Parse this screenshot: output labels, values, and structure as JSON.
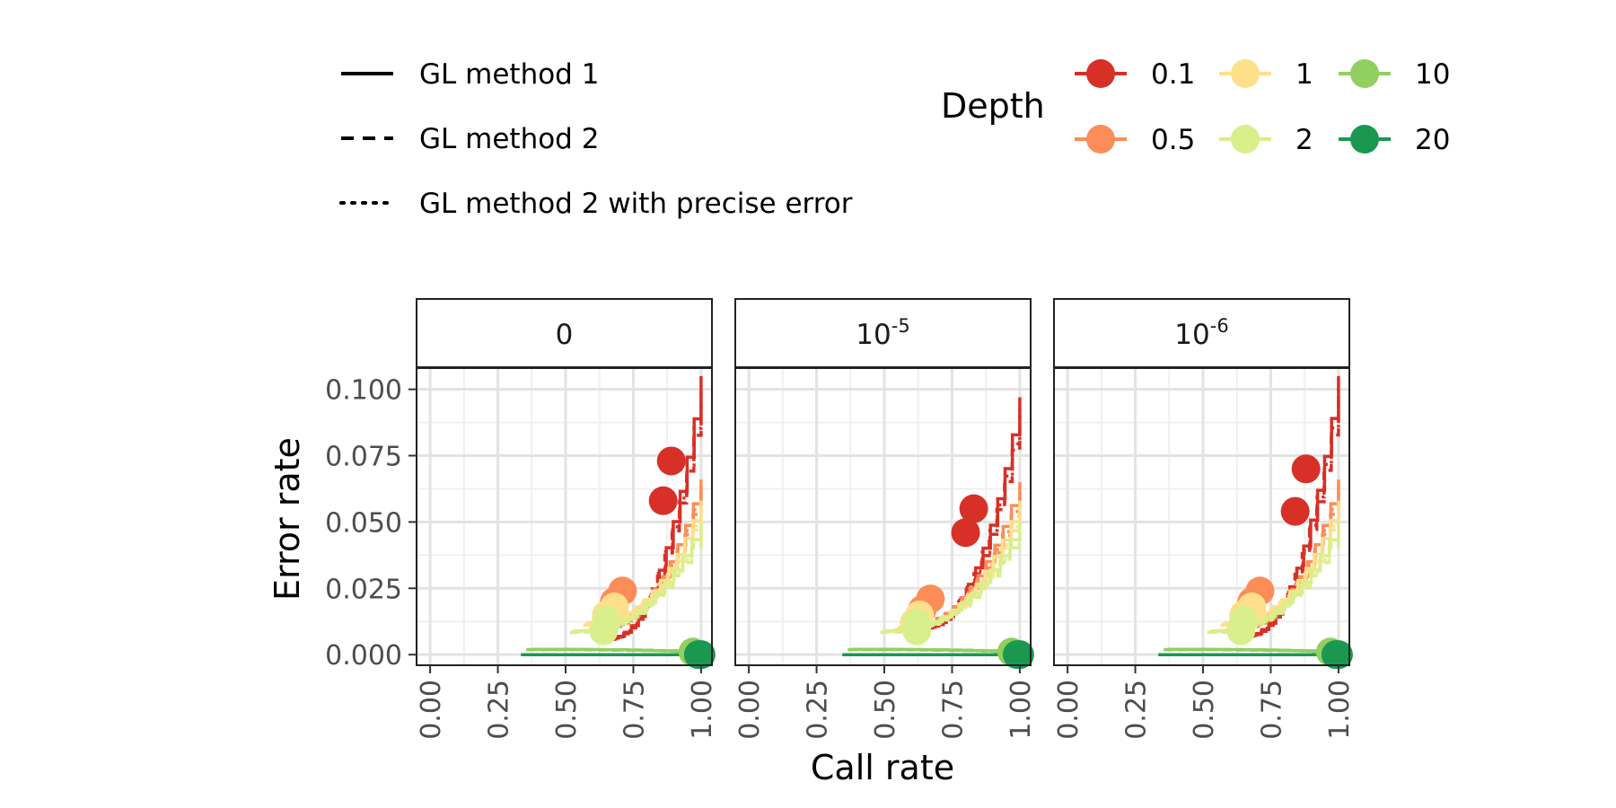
{
  "legend": {
    "method_entries": [
      {
        "label": "GL method 1",
        "dash": "solid"
      },
      {
        "label": "GL method 2",
        "dash": "dashed"
      },
      {
        "label": "GL method 2 with precise error",
        "dash": "dotted"
      }
    ],
    "depth_title": "Depth",
    "depth_entries": [
      {
        "label": "0.1",
        "color": "#d73027"
      },
      {
        "label": "0.5",
        "color": "#fc8d59"
      },
      {
        "label": "1",
        "color": "#fee08b"
      },
      {
        "label": "2",
        "color": "#d9ef8b"
      },
      {
        "label": "10",
        "color": "#91cf60"
      },
      {
        "label": "20",
        "color": "#1a9850"
      }
    ]
  },
  "chart_data": {
    "type": "line",
    "xlabel": "Call rate",
    "ylabel": "Error rate",
    "xlim": [
      -0.05,
      1.04
    ],
    "ylim": [
      -0.004,
      0.108
    ],
    "x_ticks": [
      "0.00",
      "0.25",
      "0.50",
      "0.75",
      "1.00"
    ],
    "y_ticks": [
      "0.000",
      "0.025",
      "0.050",
      "0.075",
      "0.100"
    ],
    "grid": true,
    "legend_position": "top",
    "panels": [
      {
        "strip_base": "0",
        "strip_exp": "",
        "series": [
          {
            "depth": "0.1",
            "color": "#d73027",
            "curve_start": [
              0.64,
              0.006
            ],
            "curve_end": [
              1.0,
              0.105
            ],
            "points": [
              [
                0.89,
                0.073
              ],
              [
                0.86,
                0.058
              ]
            ]
          },
          {
            "depth": "0.5",
            "color": "#fc8d59",
            "curve_start": [
              0.6,
              0.01
            ],
            "curve_end": [
              1.0,
              0.066
            ],
            "points": [
              [
                0.71,
                0.024
              ],
              [
                0.68,
                0.02
              ]
            ]
          },
          {
            "depth": "1",
            "color": "#fee08b",
            "curve_start": [
              0.58,
              0.012
            ],
            "curve_end": [
              1.0,
              0.058
            ],
            "points": [
              [
                0.68,
                0.018
              ],
              [
                0.65,
                0.015
              ]
            ]
          },
          {
            "depth": "2",
            "color": "#d9ef8b",
            "curve_start": [
              0.53,
              0.009
            ],
            "curve_end": [
              1.0,
              0.05
            ],
            "points": [
              [
                0.65,
                0.013
              ],
              [
                0.64,
                0.009
              ]
            ]
          },
          {
            "depth": "10",
            "color": "#91cf60",
            "curve_start": [
              0.37,
              0.002
            ],
            "curve_end": [
              1.0,
              0.001
            ],
            "points": [
              [
                0.97,
                0.001
              ],
              [
                0.98,
                0.0005
              ]
            ]
          },
          {
            "depth": "20",
            "color": "#1a9850",
            "curve_start": [
              0.35,
              0.0
            ],
            "curve_end": [
              1.0,
              0.0
            ],
            "points": [
              [
                0.99,
                0.0
              ],
              [
                1.0,
                0.0
              ]
            ]
          }
        ]
      },
      {
        "strip_base": "10",
        "strip_exp": "-5",
        "series": [
          {
            "depth": "0.1",
            "color": "#d73027",
            "curve_start": [
              0.62,
              0.01
            ],
            "curve_end": [
              1.0,
              0.097
            ],
            "points": [
              [
                0.83,
                0.055
              ],
              [
                0.8,
                0.046
              ]
            ]
          },
          {
            "depth": "0.5",
            "color": "#fc8d59",
            "curve_start": [
              0.57,
              0.011
            ],
            "curve_end": [
              1.0,
              0.065
            ],
            "points": [
              [
                0.67,
                0.021
              ],
              [
                0.64,
                0.017
              ]
            ]
          },
          {
            "depth": "1",
            "color": "#fee08b",
            "curve_start": [
              0.55,
              0.01
            ],
            "curve_end": [
              1.0,
              0.058
            ],
            "points": [
              [
                0.63,
                0.015
              ],
              [
                0.61,
                0.012
              ]
            ]
          },
          {
            "depth": "2",
            "color": "#d9ef8b",
            "curve_start": [
              0.5,
              0.009
            ],
            "curve_end": [
              1.0,
              0.05
            ],
            "points": [
              [
                0.62,
                0.012
              ],
              [
                0.62,
                0.009
              ]
            ]
          },
          {
            "depth": "10",
            "color": "#91cf60",
            "curve_start": [
              0.38,
              0.002
            ],
            "curve_end": [
              1.0,
              0.001
            ],
            "points": [
              [
                0.97,
                0.001
              ],
              [
                0.98,
                0.0005
              ]
            ]
          },
          {
            "depth": "20",
            "color": "#1a9850",
            "curve_start": [
              0.36,
              0.0
            ],
            "curve_end": [
              1.0,
              0.0
            ],
            "points": [
              [
                0.99,
                0.0
              ],
              [
                1.0,
                0.0
              ]
            ]
          }
        ]
      },
      {
        "strip_base": "10",
        "strip_exp": "-6",
        "series": [
          {
            "depth": "0.1",
            "color": "#d73027",
            "curve_start": [
              0.64,
              0.007
            ],
            "curve_end": [
              1.0,
              0.105
            ],
            "points": [
              [
                0.88,
                0.07
              ],
              [
                0.84,
                0.054
              ]
            ]
          },
          {
            "depth": "0.5",
            "color": "#fc8d59",
            "curve_start": [
              0.6,
              0.01
            ],
            "curve_end": [
              1.0,
              0.066
            ],
            "points": [
              [
                0.71,
                0.024
              ],
              [
                0.68,
                0.02
              ]
            ]
          },
          {
            "depth": "1",
            "color": "#fee08b",
            "curve_start": [
              0.58,
              0.012
            ],
            "curve_end": [
              1.0,
              0.058
            ],
            "points": [
              [
                0.68,
                0.018
              ],
              [
                0.65,
                0.015
              ]
            ]
          },
          {
            "depth": "2",
            "color": "#d9ef8b",
            "curve_start": [
              0.53,
              0.009
            ],
            "curve_end": [
              1.0,
              0.05
            ],
            "points": [
              [
                0.65,
                0.013
              ],
              [
                0.64,
                0.009
              ]
            ]
          },
          {
            "depth": "10",
            "color": "#91cf60",
            "curve_start": [
              0.37,
              0.002
            ],
            "curve_end": [
              1.0,
              0.001
            ],
            "points": [
              [
                0.97,
                0.001
              ],
              [
                0.98,
                0.0005
              ]
            ]
          },
          {
            "depth": "20",
            "color": "#1a9850",
            "curve_start": [
              0.35,
              0.0
            ],
            "curve_end": [
              1.0,
              0.0
            ],
            "points": [
              [
                0.99,
                0.0
              ],
              [
                1.0,
                0.0
              ]
            ]
          }
        ]
      }
    ]
  }
}
